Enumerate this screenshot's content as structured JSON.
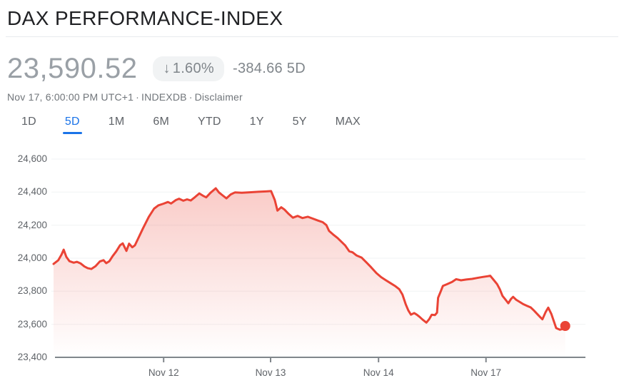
{
  "header": {
    "title": "DAX PERFORMANCE-INDEX"
  },
  "quote": {
    "price": "23,590.52",
    "change": {
      "arrow": "↓",
      "percent": "1.60%",
      "value": "-384.66",
      "period": "5D"
    },
    "meta": {
      "timestamp": "Nov 17, 6:00:00 PM UTC+1",
      "separator": "·",
      "exchange": "INDEXDB",
      "disclaimer": "Disclaimer"
    }
  },
  "range_tabs": [
    {
      "id": "1d",
      "label": "1D",
      "selected": false
    },
    {
      "id": "5d",
      "label": "5D",
      "selected": true
    },
    {
      "id": "1m",
      "label": "1M",
      "selected": false
    },
    {
      "id": "6m",
      "label": "6M",
      "selected": false
    },
    {
      "id": "ytd",
      "label": "YTD",
      "selected": false
    },
    {
      "id": "1y",
      "label": "1Y",
      "selected": false
    },
    {
      "id": "5y",
      "label": "5Y",
      "selected": false
    },
    {
      "id": "max",
      "label": "MAX",
      "selected": false
    }
  ],
  "colors": {
    "accent_blue": "#1a73e8",
    "line_red": "#ea4335",
    "area_fill_top": "rgba(234,67,53,0.32)",
    "area_fill_bottom": "rgba(234,67,53,0)",
    "grid": "#f1f3f4",
    "axis": "#80868b",
    "muted_text": "#80868b",
    "badge_bg": "#f1f3f4",
    "price_text": "#9aa0a6"
  },
  "chart_data": {
    "type": "area",
    "series_name": "DAX PERFORMANCE-INDEX, 5 days",
    "last_value": 23590.52,
    "ylim": [
      23400,
      24600
    ],
    "grid": true,
    "y_ticks": [
      {
        "label": "24,600",
        "value": 24600
      },
      {
        "label": "24,400",
        "value": 24400
      },
      {
        "label": "24,200",
        "value": 24200
      },
      {
        "label": "24,000",
        "value": 24000
      },
      {
        "label": "23,800",
        "value": 23800
      },
      {
        "label": "23,600",
        "value": 23600
      },
      {
        "label": "23,400",
        "value": 23400
      }
    ],
    "x_ticks": [
      {
        "label": "Nov 12",
        "f": 0.207
      },
      {
        "label": "Nov 13",
        "f": 0.408
      },
      {
        "label": "Nov 14",
        "f": 0.611
      },
      {
        "label": "Nov 17",
        "f": 0.813
      }
    ],
    "points": [
      [
        0.0,
        23965
      ],
      [
        0.009,
        23988
      ],
      [
        0.015,
        24022
      ],
      [
        0.019,
        24052
      ],
      [
        0.024,
        24008
      ],
      [
        0.03,
        23982
      ],
      [
        0.038,
        23973
      ],
      [
        0.044,
        23978
      ],
      [
        0.051,
        23968
      ],
      [
        0.058,
        23950
      ],
      [
        0.064,
        23940
      ],
      [
        0.071,
        23935
      ],
      [
        0.079,
        23952
      ],
      [
        0.087,
        23980
      ],
      [
        0.094,
        23988
      ],
      [
        0.099,
        23970
      ],
      [
        0.105,
        23982
      ],
      [
        0.111,
        24012
      ],
      [
        0.118,
        24042
      ],
      [
        0.125,
        24078
      ],
      [
        0.13,
        24090
      ],
      [
        0.137,
        24044
      ],
      [
        0.142,
        24088
      ],
      [
        0.148,
        24066
      ],
      [
        0.153,
        24078
      ],
      [
        0.158,
        24112
      ],
      [
        0.168,
        24180
      ],
      [
        0.179,
        24250
      ],
      [
        0.189,
        24300
      ],
      [
        0.197,
        24320
      ],
      [
        0.207,
        24330
      ],
      [
        0.215,
        24340
      ],
      [
        0.221,
        24331
      ],
      [
        0.23,
        24352
      ],
      [
        0.236,
        24360
      ],
      [
        0.244,
        24348
      ],
      [
        0.251,
        24356
      ],
      [
        0.258,
        24349
      ],
      [
        0.266,
        24370
      ],
      [
        0.274,
        24392
      ],
      [
        0.281,
        24378
      ],
      [
        0.287,
        24368
      ],
      [
        0.295,
        24396
      ],
      [
        0.305,
        24423
      ],
      [
        0.311,
        24398
      ],
      [
        0.318,
        24380
      ],
      [
        0.325,
        24362
      ],
      [
        0.333,
        24386
      ],
      [
        0.341,
        24398
      ],
      [
        0.354,
        24396
      ],
      [
        0.369,
        24399
      ],
      [
        0.385,
        24402
      ],
      [
        0.399,
        24404
      ],
      [
        0.409,
        24406
      ],
      [
        0.416,
        24352
      ],
      [
        0.421,
        24288
      ],
      [
        0.428,
        24308
      ],
      [
        0.434,
        24295
      ],
      [
        0.442,
        24268
      ],
      [
        0.45,
        24245
      ],
      [
        0.459,
        24256
      ],
      [
        0.468,
        24243
      ],
      [
        0.478,
        24251
      ],
      [
        0.487,
        24240
      ],
      [
        0.497,
        24228
      ],
      [
        0.506,
        24218
      ],
      [
        0.513,
        24200
      ],
      [
        0.518,
        24165
      ],
      [
        0.527,
        24140
      ],
      [
        0.534,
        24122
      ],
      [
        0.548,
        24078
      ],
      [
        0.556,
        24042
      ],
      [
        0.562,
        24036
      ],
      [
        0.57,
        24016
      ],
      [
        0.579,
        24004
      ],
      [
        0.588,
        23975
      ],
      [
        0.597,
        23945
      ],
      [
        0.607,
        23910
      ],
      [
        0.616,
        23885
      ],
      [
        0.625,
        23866
      ],
      [
        0.635,
        23846
      ],
      [
        0.643,
        23830
      ],
      [
        0.65,
        23812
      ],
      [
        0.656,
        23780
      ],
      [
        0.662,
        23722
      ],
      [
        0.667,
        23684
      ],
      [
        0.672,
        23658
      ],
      [
        0.678,
        23668
      ],
      [
        0.683,
        23658
      ],
      [
        0.688,
        23645
      ],
      [
        0.694,
        23628
      ],
      [
        0.701,
        23610
      ],
      [
        0.706,
        23630
      ],
      [
        0.711,
        23658
      ],
      [
        0.717,
        23656
      ],
      [
        0.721,
        23670
      ],
      [
        0.723,
        23760
      ],
      [
        0.728,
        23800
      ],
      [
        0.732,
        23832
      ],
      [
        0.74,
        23843
      ],
      [
        0.749,
        23856
      ],
      [
        0.757,
        23873
      ],
      [
        0.766,
        23866
      ],
      [
        0.776,
        23871
      ],
      [
        0.787,
        23875
      ],
      [
        0.799,
        23882
      ],
      [
        0.808,
        23887
      ],
      [
        0.816,
        23891
      ],
      [
        0.821,
        23894
      ],
      [
        0.828,
        23866
      ],
      [
        0.834,
        23843
      ],
      [
        0.839,
        23812
      ],
      [
        0.844,
        23772
      ],
      [
        0.85,
        23748
      ],
      [
        0.855,
        23727
      ],
      [
        0.86,
        23753
      ],
      [
        0.864,
        23766
      ],
      [
        0.87,
        23748
      ],
      [
        0.877,
        23734
      ],
      [
        0.883,
        23722
      ],
      [
        0.89,
        23712
      ],
      [
        0.897,
        23702
      ],
      [
        0.903,
        23684
      ],
      [
        0.91,
        23660
      ],
      [
        0.915,
        23643
      ],
      [
        0.919,
        23630
      ],
      [
        0.925,
        23673
      ],
      [
        0.93,
        23701
      ],
      [
        0.936,
        23662
      ],
      [
        0.94,
        23624
      ],
      [
        0.945,
        23577
      ],
      [
        0.952,
        23567
      ],
      [
        0.957,
        23572
      ],
      [
        0.962,
        23590
      ]
    ]
  }
}
